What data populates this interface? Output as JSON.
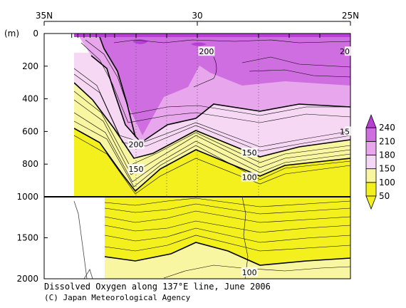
{
  "chart_data": {
    "type": "contour",
    "title": "Dissolved Oxygen along 137°E line, June 2006",
    "credit": "(C) Japan Meteorological Agency",
    "x_axis": {
      "ticks": [
        {
          "value": 35,
          "label": "35N"
        },
        {
          "value": 30,
          "label": "30"
        },
        {
          "value": 25,
          "label": "25N"
        }
      ],
      "range": [
        35,
        25
      ]
    },
    "y_axis": {
      "unit_label": "(m)",
      "upper_panel": {
        "range": [
          0,
          1000
        ],
        "ticks": [
          0,
          200,
          400,
          600,
          800,
          1000
        ]
      },
      "lower_panel": {
        "range": [
          1000,
          2000
        ],
        "ticks": [
          1500,
          2000
        ]
      }
    },
    "colorbar": {
      "levels": [
        50,
        100,
        150,
        180,
        210,
        240
      ],
      "colors": [
        "#f3f01e",
        "#f8f6a0",
        "#f6d8f4",
        "#e8a6ec",
        "#cf6ee0",
        "#b83fd6"
      ],
      "extends": "both"
    },
    "contour_labels": [
      {
        "text": "200",
        "lat": 29.7,
        "depth": 110
      },
      {
        "text": "20",
        "lat": 25.0,
        "depth": 110
      },
      {
        "text": "200",
        "lat": 32.0,
        "depth": 680
      },
      {
        "text": "150",
        "lat": 32.0,
        "depth": 830
      },
      {
        "text": "150",
        "lat": 28.3,
        "depth": 730
      },
      {
        "text": "15",
        "lat": 25.0,
        "depth": 600
      },
      {
        "text": "100",
        "lat": 28.3,
        "depth": 880
      },
      {
        "text": "100",
        "lat": 28.3,
        "depth": 1920
      }
    ],
    "stations_lat": [
      34.1,
      33.9,
      33.7,
      33.5,
      33.3,
      33.0,
      32.7,
      32.0,
      31.0,
      30.0,
      28.0,
      27.0,
      26.0,
      25.0
    ],
    "grid": false
  }
}
